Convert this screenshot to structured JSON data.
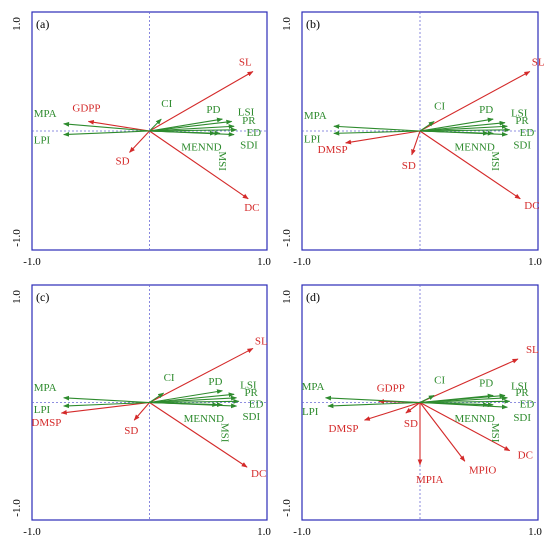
{
  "figure": {
    "colors": {
      "frame": "#2b2bb8",
      "axis_line": "#6b6bd6",
      "species": "#2e8b2e",
      "env": "#d42a2a",
      "tick_text": "#000000"
    }
  },
  "chart_data": [
    {
      "type": "scatter",
      "panel_label": "(a)",
      "xlim": [
        -1.0,
        1.0
      ],
      "ylim": [
        -1.0,
        1.0
      ],
      "x_ticks": [
        "-1.0",
        "1.0"
      ],
      "y_ticks": [
        "-1.0",
        "1.0"
      ],
      "grid": false,
      "species_vectors": [
        {
          "label": "MPA",
          "x": -0.73,
          "y": 0.06
        },
        {
          "label": "LPI",
          "x": -0.73,
          "y": -0.03
        },
        {
          "label": "PD",
          "x": 0.62,
          "y": 0.1
        },
        {
          "label": "LSI",
          "x": 0.7,
          "y": 0.08
        },
        {
          "label": "PR",
          "x": 0.72,
          "y": 0.04
        },
        {
          "label": "ED",
          "x": 0.74,
          "y": 0.01
        },
        {
          "label": "SDI",
          "x": 0.72,
          "y": -0.03
        },
        {
          "label": "MSI",
          "x": 0.6,
          "y": -0.02
        },
        {
          "label": "MENND",
          "x": 0.56,
          "y": -0.02
        },
        {
          "label": "CI",
          "x": 0.1,
          "y": 0.1
        }
      ],
      "env_vectors": [
        {
          "label": "SL",
          "x": 0.88,
          "y": 0.5
        },
        {
          "label": "GDPP",
          "x": -0.52,
          "y": 0.08
        },
        {
          "label": "SD",
          "x": -0.17,
          "y": -0.18
        },
        {
          "label": "DC",
          "x": 0.84,
          "y": -0.57
        }
      ]
    },
    {
      "type": "scatter",
      "panel_label": "(b)",
      "xlim": [
        -1.0,
        1.0
      ],
      "ylim": [
        -1.0,
        1.0
      ],
      "x_ticks": [
        "-1.0",
        "1.0"
      ],
      "y_ticks": [
        "-1.0",
        "1.0"
      ],
      "grid": false,
      "species_vectors": [
        {
          "label": "MPA",
          "x": -0.73,
          "y": 0.04
        },
        {
          "label": "LPI",
          "x": -0.73,
          "y": -0.02
        },
        {
          "label": "PD",
          "x": 0.62,
          "y": 0.1
        },
        {
          "label": "LSI",
          "x": 0.72,
          "y": 0.07
        },
        {
          "label": "PR",
          "x": 0.74,
          "y": 0.04
        },
        {
          "label": "ED",
          "x": 0.76,
          "y": 0.01
        },
        {
          "label": "SDI",
          "x": 0.74,
          "y": -0.03
        },
        {
          "label": "MSI",
          "x": 0.62,
          "y": -0.02
        },
        {
          "label": "MENND",
          "x": 0.58,
          "y": -0.02
        },
        {
          "label": "CI",
          "x": 0.12,
          "y": 0.08
        }
      ],
      "env_vectors": [
        {
          "label": "SL",
          "x": 0.93,
          "y": 0.5
        },
        {
          "label": "DMSP",
          "x": -0.63,
          "y": -0.1
        },
        {
          "label": "SD",
          "x": -0.07,
          "y": -0.2
        },
        {
          "label": "DC",
          "x": 0.85,
          "y": -0.57
        }
      ]
    },
    {
      "type": "scatter",
      "panel_label": "(c)",
      "xlim": [
        -1.0,
        1.0
      ],
      "ylim": [
        -1.0,
        1.0
      ],
      "x_ticks": [
        "-1.0",
        "1.0"
      ],
      "y_ticks": [
        "-1.0",
        "1.0"
      ],
      "grid": false,
      "species_vectors": [
        {
          "label": "MPA",
          "x": -0.73,
          "y": 0.04
        },
        {
          "label": "LPI",
          "x": -0.73,
          "y": -0.03
        },
        {
          "label": "PD",
          "x": 0.62,
          "y": 0.1
        },
        {
          "label": "LSI",
          "x": 0.72,
          "y": 0.07
        },
        {
          "label": "PR",
          "x": 0.74,
          "y": 0.04
        },
        {
          "label": "ED",
          "x": 0.76,
          "y": 0.01
        },
        {
          "label": "SDI",
          "x": 0.74,
          "y": -0.03
        },
        {
          "label": "MSI",
          "x": 0.62,
          "y": -0.02
        },
        {
          "label": "MENND",
          "x": 0.58,
          "y": -0.02
        },
        {
          "label": "CI",
          "x": 0.12,
          "y": 0.08
        }
      ],
      "env_vectors": [
        {
          "label": "SL",
          "x": 0.88,
          "y": 0.46
        },
        {
          "label": "DMSP",
          "x": -0.75,
          "y": -0.09
        },
        {
          "label": "SD",
          "x": -0.13,
          "y": -0.15
        },
        {
          "label": "DC",
          "x": 0.83,
          "y": -0.55
        }
      ]
    },
    {
      "type": "scatter",
      "panel_label": "(d)",
      "xlim": [
        -1.0,
        1.0
      ],
      "ylim": [
        -1.0,
        1.0
      ],
      "x_ticks": [
        "-1.0",
        "1.0"
      ],
      "y_ticks": [
        "-1.0",
        "1.0"
      ],
      "grid": false,
      "species_vectors": [
        {
          "label": "MPA",
          "x": -0.8,
          "y": 0.04
        },
        {
          "label": "LPI",
          "x": -0.78,
          "y": -0.03
        },
        {
          "label": "PD",
          "x": 0.62,
          "y": 0.06
        },
        {
          "label": "LSI",
          "x": 0.72,
          "y": 0.06
        },
        {
          "label": "PR",
          "x": 0.74,
          "y": 0.04
        },
        {
          "label": "ED",
          "x": 0.76,
          "y": 0.01
        },
        {
          "label": "SDI",
          "x": 0.74,
          "y": -0.04
        },
        {
          "label": "MSI",
          "x": 0.62,
          "y": -0.02
        },
        {
          "label": "MENND",
          "x": 0.58,
          "y": -0.02
        },
        {
          "label": "CI",
          "x": 0.12,
          "y": 0.06
        }
      ],
      "env_vectors": [
        {
          "label": "SL",
          "x": 0.83,
          "y": 0.37
        },
        {
          "label": "GDPP",
          "x": -0.35,
          "y": 0.01
        },
        {
          "label": "DMSP",
          "x": -0.47,
          "y": -0.15
        },
        {
          "label": "SD",
          "x": -0.12,
          "y": -0.09
        },
        {
          "label": "MPIA",
          "x": 0.0,
          "y": -0.53
        },
        {
          "label": "MPIO",
          "x": 0.38,
          "y": -0.5
        },
        {
          "label": "DC",
          "x": 0.76,
          "y": -0.41
        }
      ]
    }
  ]
}
